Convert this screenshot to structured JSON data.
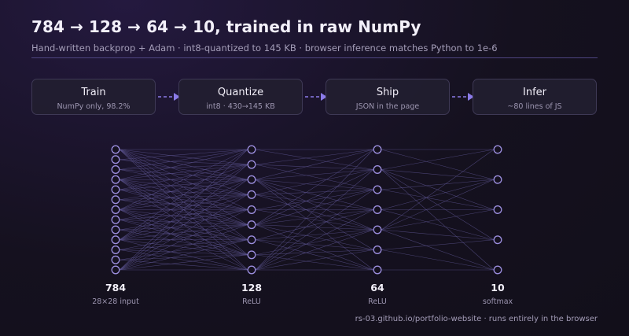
{
  "header": {
    "title": "784 → 128 → 64 → 10, trained in raw NumPy",
    "subtitle": "Hand-written backprop + Adam · int8-quantized to 145 KB · browser inference matches Python to 1e-6"
  },
  "pipeline": [
    {
      "title": "Train",
      "subtitle": "NumPy only, 98.2%"
    },
    {
      "title": "Quantize",
      "subtitle": "int8 · 430→145 KB"
    },
    {
      "title": "Ship",
      "subtitle": "JSON in the page"
    },
    {
      "title": "Infer",
      "subtitle": "~80 lines of JS"
    }
  ],
  "network": {
    "layers": [
      {
        "count": "784",
        "label": "28×28 input",
        "nodes_drawn": 13
      },
      {
        "count": "128",
        "label": "ReLU",
        "nodes_drawn": 9
      },
      {
        "count": "64",
        "label": "ReLU",
        "nodes_drawn": 7
      },
      {
        "count": "10",
        "label": "softmax",
        "nodes_drawn": 5
      }
    ]
  },
  "colors": {
    "node_stroke": "#9d8fe0",
    "edge": "#5c5490",
    "arrow": "#8b7be8",
    "accent_rule": "#4e4580"
  },
  "footer": "rs-03.github.io/portfolio-website · runs entirely in the browser"
}
